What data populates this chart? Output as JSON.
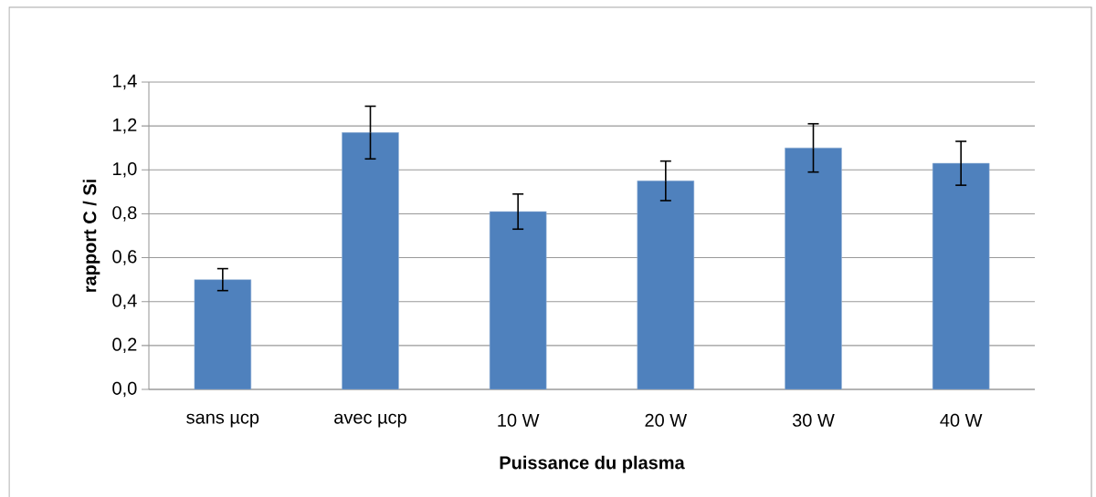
{
  "chart_data": {
    "type": "bar",
    "xlabel": "Puissance du plasma",
    "ylabel": "rapport C / Si",
    "categories": [
      "sans µcp",
      "avec µcp",
      "10 W",
      "20 W",
      "30 W",
      "40 W"
    ],
    "values": [
      0.5,
      1.17,
      0.81,
      0.95,
      1.1,
      1.03
    ],
    "errors": [
      0.05,
      0.12,
      0.08,
      0.09,
      0.11,
      0.1
    ],
    "color": "#4f81bd",
    "ylim": [
      0,
      1.4
    ],
    "yticks": [
      {
        "value": 0,
        "label": "0,0"
      },
      {
        "value": 0.2,
        "label": "0,2"
      },
      {
        "value": 0.4,
        "label": "0,4"
      },
      {
        "value": 0.6,
        "label": "0,6"
      },
      {
        "value": 0.8,
        "label": "0,8"
      },
      {
        "value": 1.0,
        "label": "1,0"
      },
      {
        "value": 1.2,
        "label": "1,2"
      },
      {
        "value": 1.4,
        "label": "1,4"
      }
    ],
    "grid": "y"
  }
}
